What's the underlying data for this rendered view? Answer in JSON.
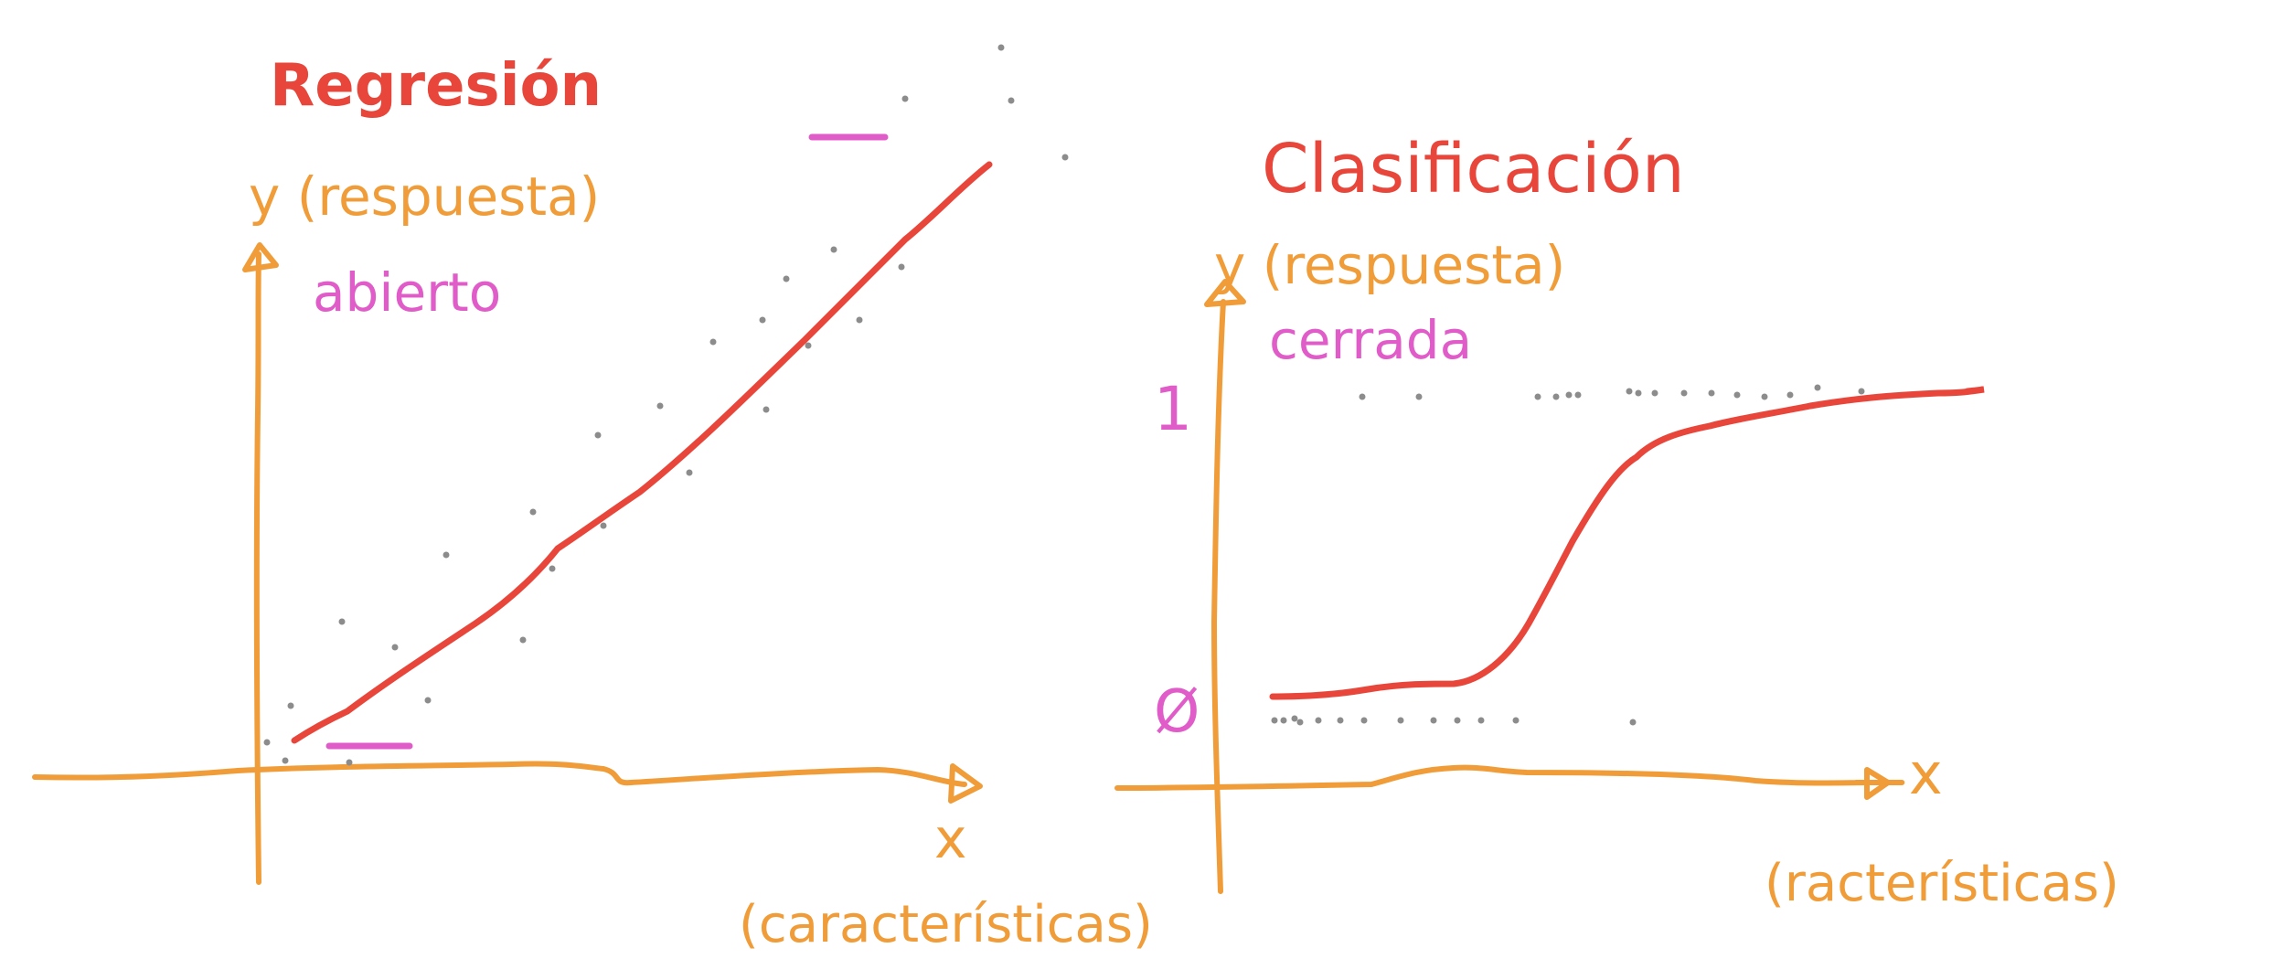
{
  "colors": {
    "axis": "#F09C38",
    "curve": "#E8463A",
    "title": "#E8463A",
    "accent": "#E05CC8",
    "dots": "#8C8C8C",
    "background": "#FFFFFF"
  },
  "regression": {
    "title": "Regresión",
    "ylabel": "y (respuesta)",
    "ytype": "abierto",
    "xlabel": "x",
    "xcaption": "(características)"
  },
  "classification": {
    "title": "Clasificación",
    "ylabel": "y (respuesta)",
    "ytype": "cerrada",
    "tick_one": "1",
    "tick_zero": "Ø",
    "xlabel": "x",
    "xcaption": "(racterísticas)"
  }
}
